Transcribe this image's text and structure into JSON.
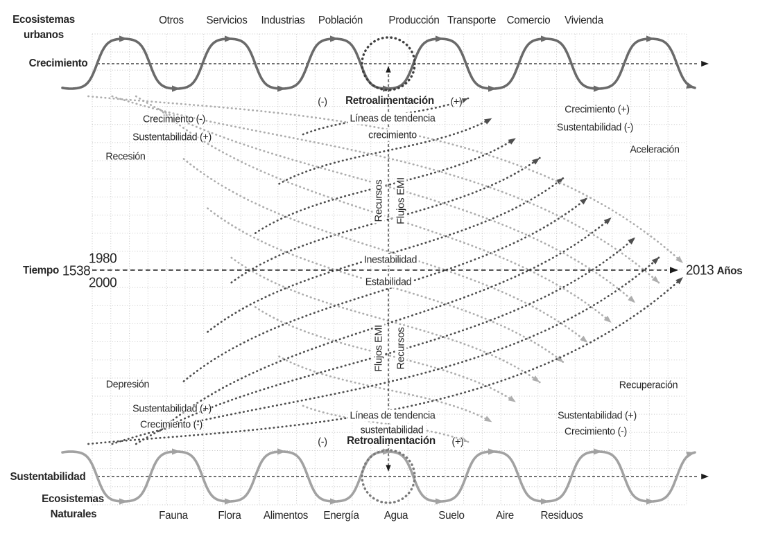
{
  "colors": {
    "wave_top": "#6a6a6a",
    "wave_bottom": "#a2a2a2",
    "arc_dark": "#4e4e4e",
    "arc_light": "#aeaeae",
    "grid": "#c7c7c7",
    "axis": "#1c1c1c",
    "circle_top": "#3f3f3f",
    "circle_bottom": "#7a7a7a",
    "text": "#262626"
  },
  "urban": {
    "title_line1": "Ecosistemas",
    "title_line2": "urbanos",
    "axis_label": "Crecimiento",
    "sectors": [
      "Otros",
      "Servicios",
      "Industrias",
      "Población",
      "Producción",
      "Transporte",
      "Comercio",
      "Vivienda"
    ]
  },
  "natural": {
    "axis_label": "Sustentabilidad",
    "title_line1": "Ecosistemas",
    "title_line2": "Naturales",
    "sectors": [
      "Fauna",
      "Flora",
      "Alimentos",
      "Energía",
      "Agua",
      "Suelo",
      "Aire",
      "Residuos"
    ]
  },
  "timeline": {
    "label_left": "Tiempo",
    "start_year": "1538",
    "year_top": "1980",
    "year_bottom": "2000",
    "end_year": "2013",
    "label_right": "Años"
  },
  "feedback_top": {
    "minus": "(-)",
    "label": "Retroalimentación",
    "plus": "(+)",
    "trend_line1": "Líneas de tendencia",
    "trend_line2": "crecimiento"
  },
  "feedback_bottom": {
    "trend_line1": "Líneas de tendencia",
    "trend_line2": "sustentabilidad",
    "minus": "(-)",
    "label": "Retroalimentación",
    "plus": "(+)"
  },
  "quadrants": {
    "top_left": {
      "line1": "Crecimiento (-)",
      "line2": "Sustentabilidad (+)",
      "phase": "Recesión"
    },
    "top_right": {
      "line1": "Crecimiento (+)",
      "line2": "Sustentabilidad (-)",
      "phase": "Aceleración"
    },
    "bottom_left": {
      "line1": "Sustentabilidad (+)",
      "line2": "Crecimiento (-)",
      "phase": "Depresión"
    },
    "bottom_right": {
      "line1": "Sustentabilidad (+)",
      "line2": "Crecimiento (-)",
      "phase": "Recuperación"
    }
  },
  "center": {
    "flows_top_left": "Recursos",
    "flows_top_right": "Flujos EMI",
    "instability": "Inestabilidad",
    "stability": "Estabilidad",
    "flows_bottom_left": "Flujos EMI",
    "flows_bottom_right": "Recursos"
  }
}
